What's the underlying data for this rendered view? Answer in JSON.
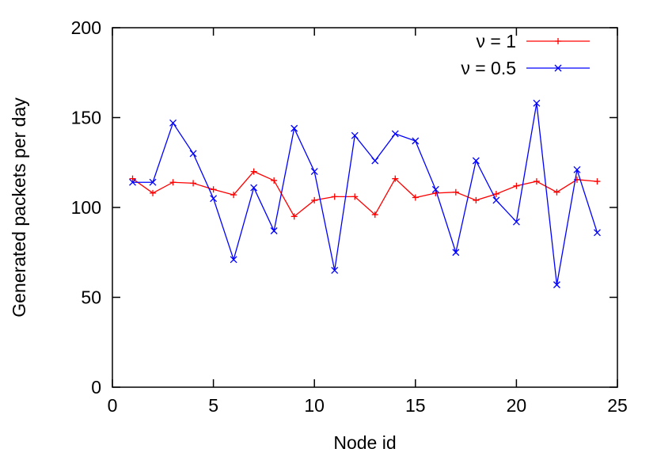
{
  "chart_data": {
    "type": "line",
    "xlabel": "Node id",
    "ylabel": "Generated packets per day",
    "x": [
      1,
      2,
      3,
      4,
      5,
      6,
      7,
      8,
      9,
      10,
      11,
      12,
      13,
      14,
      15,
      16,
      17,
      18,
      19,
      20,
      21,
      22,
      23,
      24
    ],
    "series": [
      {
        "name": "ν = 1",
        "color": "#ff0000",
        "marker": "+",
        "values": [
          116,
          108,
          114,
          113.5,
          110,
          107,
          120,
          115,
          95,
          104,
          106,
          106,
          96,
          116,
          105.5,
          108,
          108.5,
          104,
          107.5,
          112,
          114.5,
          108.5,
          115.5,
          114.5
        ]
      },
      {
        "name": "ν = 0.5",
        "color": "#0000ff",
        "marker": "x",
        "values": [
          114,
          114,
          147,
          130,
          105,
          71,
          111,
          87,
          144,
          120,
          65,
          140,
          126,
          141,
          137,
          110,
          75,
          126,
          104,
          92,
          158,
          57,
          121,
          86
        ]
      }
    ],
    "xlim": [
      0,
      25
    ],
    "xticks": [
      0,
      5,
      10,
      15,
      20,
      25
    ],
    "ylim": [
      0,
      200
    ],
    "yticks": [
      0,
      50,
      100,
      150,
      200
    ],
    "legend": "top-right"
  }
}
